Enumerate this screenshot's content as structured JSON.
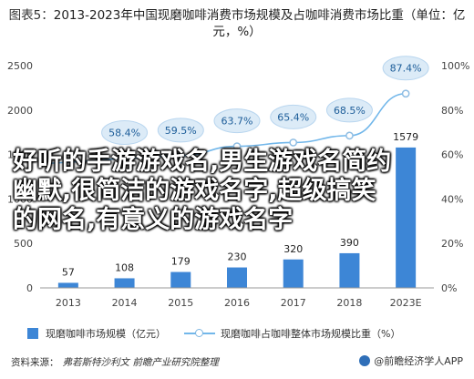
{
  "title": {
    "prefix": "图表5：",
    "text": "2013-2023年中国现磨咖啡消费市场规模及占咖啡消费市场比重（单位：亿元，%）"
  },
  "legend": {
    "bar_label": "现磨咖啡市场规模（亿元）",
    "line_label": "现磨咖啡占咖啡整体市场规模比重（%）"
  },
  "source": {
    "prefix": "资料来源：",
    "value": "弗若斯特沙利文 前瞻产业研究院整理"
  },
  "brand": "@前瞻经济学人APP",
  "overlay": {
    "line1": "好听的手游游戏名,男生游戏名简约",
    "line2": "幽默,很简洁的游戏名字,超级搞笑",
    "line3": "的网名,有意义的游戏名字"
  },
  "colors": {
    "bar": "#3d86d6",
    "line": "#72b7ea",
    "label_fill": "#dcebf7",
    "label_text": "#1d5d99"
  },
  "chart_data": {
    "type": "bar",
    "categories": [
      "2013",
      "2014",
      "2015",
      "2016",
      "2017",
      "2018",
      "2023E"
    ],
    "series": [
      {
        "name": "现磨咖啡市场规模（亿元）",
        "type": "bar",
        "axis": "left",
        "values": [
          57,
          108,
          179,
          230,
          320,
          390,
          1579
        ],
        "labels": [
          "57",
          "108",
          "179",
          "230",
          "320",
          "390",
          "1579"
        ]
      },
      {
        "name": "现磨咖啡占咖啡整体市场规模比重（%）",
        "type": "line",
        "axis": "right",
        "values": [
          null,
          58.4,
          59.5,
          63.7,
          65.4,
          68.5,
          87.4
        ],
        "labels": [
          "",
          "58.4%",
          "59.5%",
          "63.7%",
          "65.4%",
          "68.5%",
          "87.4%"
        ]
      }
    ],
    "left_axis": {
      "ylim": [
        0,
        2500
      ],
      "ticks": [
        "0",
        "500",
        "1000",
        "1500",
        "2000",
        "2500"
      ]
    },
    "right_axis": {
      "ylim": [
        0,
        100
      ],
      "ticks": [
        "0%",
        "20%",
        "40%",
        "60%",
        "80%",
        "100%"
      ]
    },
    "legend_position": "bottom"
  }
}
